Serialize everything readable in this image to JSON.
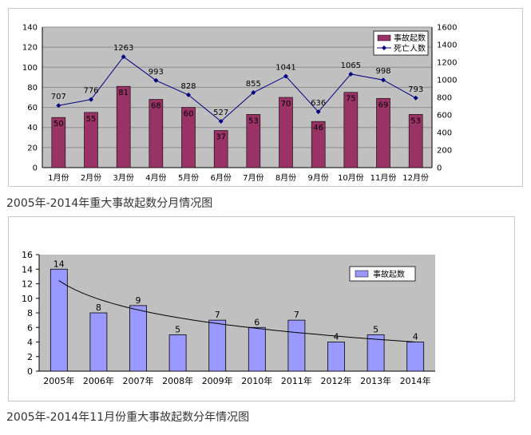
{
  "caption1": "2005年-2014年重大事故起数分月情况图",
  "caption2": "2005年-2014年11月份重大事故起数分年情况图",
  "chart_data": [
    {
      "type": "bar",
      "categories": [
        "1月份",
        "2月份",
        "3月份",
        "4月份",
        "5月份",
        "6月份",
        "7月份",
        "8月份",
        "9月份",
        "10月份",
        "11月份",
        "12月份"
      ],
      "series": [
        {
          "name": "事故起数",
          "type": "bar",
          "axis": "left",
          "values": [
            50,
            55,
            81,
            68,
            60,
            37,
            53,
            70,
            46,
            75,
            69,
            53
          ]
        },
        {
          "name": "死亡人数",
          "type": "line",
          "axis": "right",
          "values": [
            707,
            776,
            1263,
            993,
            828,
            527,
            855,
            1041,
            636,
            1065,
            998,
            793
          ]
        }
      ],
      "ylim": [
        0,
        140
      ],
      "y_ticks": [
        "0",
        "20",
        "40",
        "60",
        "80",
        "100",
        "120",
        "140"
      ],
      "y2lim": [
        0,
        1600
      ],
      "y2_ticks": [
        "0",
        "200",
        "400",
        "600",
        "800",
        "1000",
        "1200",
        "1400",
        "1600"
      ],
      "legend": "top-right",
      "grid": true,
      "colors": {
        "bar": "#993366",
        "line": "#000080",
        "plot_bg": "#c0c0c0"
      }
    },
    {
      "type": "bar",
      "categories": [
        "2005年",
        "2006年",
        "2007年",
        "2008年",
        "2009年",
        "2010年",
        "2011年",
        "2012年",
        "2013年",
        "2014年"
      ],
      "series": [
        {
          "name": "事故起数",
          "values": [
            14,
            8,
            9,
            5,
            7,
            6,
            7,
            4,
            5,
            4
          ]
        }
      ],
      "trendline": true,
      "ylim": [
        0,
        16
      ],
      "y_ticks": [
        "0",
        "2",
        "4",
        "6",
        "8",
        "10",
        "12",
        "14",
        "16"
      ],
      "legend": "top-right",
      "grid": false,
      "colors": {
        "bar": "#9999ff",
        "trend": "#000000",
        "plot_bg": "#c0c0c0"
      }
    }
  ]
}
